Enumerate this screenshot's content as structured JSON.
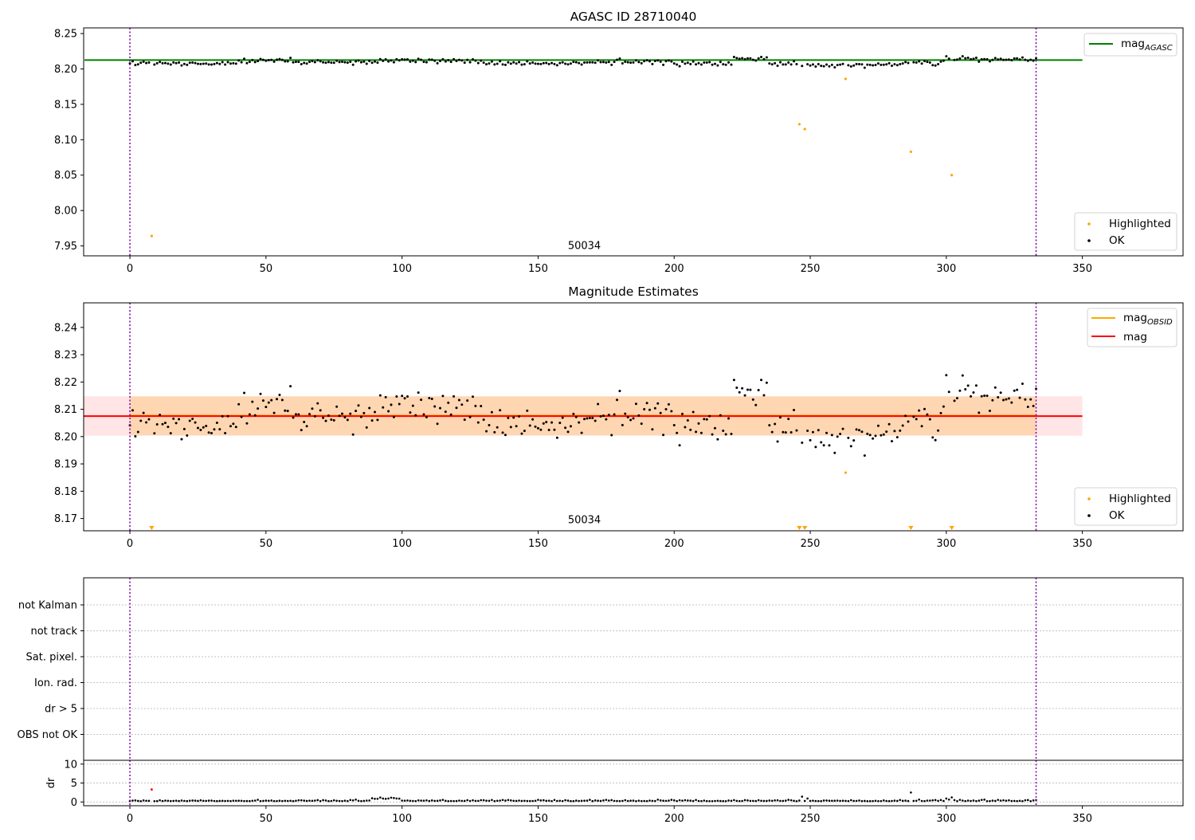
{
  "chart_data": [
    {
      "type": "scatter",
      "title": "AGASC ID 28710040",
      "xlim": [
        -17,
        387
      ],
      "ylim": [
        7.936,
        8.258
      ],
      "xticks": [
        0,
        50,
        100,
        150,
        200,
        250,
        300,
        350
      ],
      "yticks": [
        7.95,
        8.0,
        8.05,
        8.1,
        8.15,
        8.2,
        8.25
      ],
      "ytick_labels": [
        "7.95",
        "8.00",
        "8.05",
        "8.10",
        "8.15",
        "8.20",
        "8.25"
      ],
      "annotation": {
        "text": "50034",
        "x": 167,
        "y": 7.95
      },
      "vertical_lines": [
        0,
        333
      ],
      "horizontal_line": {
        "name": "mag_AGASC",
        "y": 8.2125,
        "x_range": [
          0,
          350
        ],
        "color": "#008000"
      },
      "series": [
        {
          "name": "Highlighted",
          "color": "#ffa500",
          "points": [
            [
              8,
              7.964
            ],
            [
              246,
              8.122
            ],
            [
              248,
              8.115
            ],
            [
              263,
              8.186
            ],
            [
              287,
              8.083
            ],
            [
              302,
              8.05
            ]
          ]
        },
        {
          "name": "OK",
          "color": "#000000",
          "mode": "main"
        }
      ],
      "legend_line": {
        "label_main": "mag",
        "label_sub": "AGASC",
        "placement": "upper right"
      },
      "legend_points": {
        "items": [
          "Highlighted",
          "OK"
        ],
        "placement": "lower right"
      }
    },
    {
      "type": "scatter",
      "title": "Magnitude Estimates",
      "xlim": [
        -17,
        387
      ],
      "ylim": [
        8.1655,
        8.249
      ],
      "xticks": [
        0,
        50,
        100,
        150,
        200,
        250,
        300,
        350
      ],
      "yticks": [
        8.17,
        8.18,
        8.19,
        8.2,
        8.21,
        8.22,
        8.23,
        8.24
      ],
      "ytick_labels": [
        "8.17",
        "8.18",
        "8.19",
        "8.20",
        "8.21",
        "8.22",
        "8.23",
        "8.24"
      ],
      "annotation": {
        "text": "50034",
        "x": 167,
        "y": 8.1695
      },
      "vertical_lines": [
        0,
        333
      ],
      "mag_obsid": {
        "y": 8.2077,
        "band": [
          8.2005,
          8.2147
        ],
        "x_range": [
          0,
          333
        ],
        "color": "#ffa500"
      },
      "mag": {
        "y": 8.2075,
        "band": [
          8.2003,
          8.2148
        ],
        "x_range": [
          -17,
          350
        ],
        "color": "#ff0000"
      },
      "out_of_range_markers": [
        8,
        246,
        248,
        287,
        302
      ],
      "series": [
        {
          "name": "Highlighted",
          "color": "#ffa500",
          "points": [
            [
              263,
              8.1868
            ]
          ]
        },
        {
          "name": "OK",
          "color": "#000000",
          "mode": "main"
        }
      ],
      "legend_line": {
        "label_obsid_main": "mag",
        "label_obsid_sub": "OBSID",
        "label_mag": "mag",
        "placement": "upper right"
      },
      "legend_points": {
        "items": [
          "Highlighted",
          "OK"
        ],
        "placement": "lower right"
      }
    },
    {
      "type": "scatter",
      "title": "",
      "xlim": [
        -17,
        387
      ],
      "categories": [
        "not Kalman",
        "not track",
        "Sat. pixel.",
        "Ion. rad.",
        "dr > 5",
        "OBS not OK"
      ],
      "vertical_lines": [
        0,
        333
      ],
      "grid": true
    },
    {
      "type": "scatter",
      "title": "",
      "xlim": [
        -17,
        387
      ],
      "ylim": [
        -1,
        11
      ],
      "xticks": [
        0,
        50,
        100,
        150,
        200,
        250,
        300,
        350
      ],
      "yticks": [
        0,
        5,
        10
      ],
      "ytick_labels": [
        "0",
        "5",
        "10"
      ],
      "ylabel": "dr",
      "vertical_lines": [
        0,
        333
      ],
      "series": [
        {
          "name": "dr",
          "color": "#000000",
          "mode": "dr"
        },
        {
          "name": "dr-highlighted",
          "color": "#ff0000",
          "points": [
            [
              8,
              3.3
            ]
          ]
        }
      ]
    }
  ],
  "legend": {
    "mag_main": "mag",
    "agasc_sub": "AGASC",
    "obsid_sub": "OBSID",
    "highlighted": "Highlighted",
    "ok": "OK"
  }
}
